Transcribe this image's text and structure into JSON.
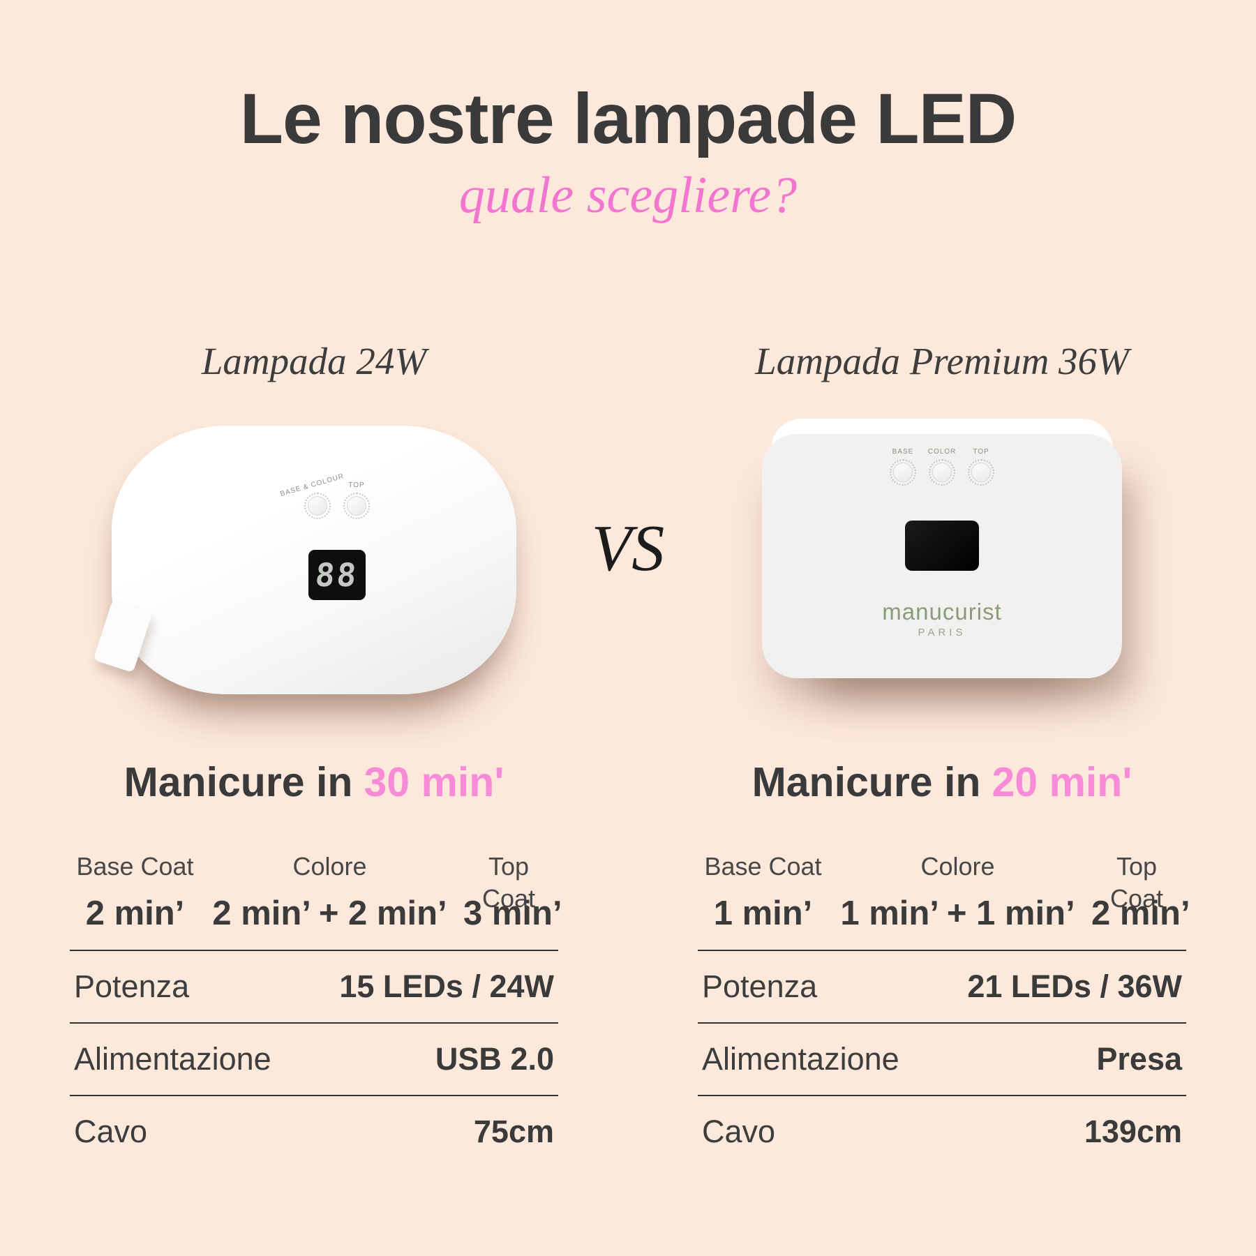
{
  "page": {
    "title": "Le nostre lampade LED",
    "subtitle": "quale scegliere?",
    "vs_label": "VS"
  },
  "colors": {
    "background": "#fce9dc",
    "title_dark": "#3a3a3a",
    "pink_subtitle": "#f276cf",
    "pink_highlight": "#f78bd7",
    "brand_green": "#8a9b78",
    "divider": "#333333"
  },
  "left_lamp": {
    "name": "Lampada 24W",
    "knob_labels": [
      "BASE & COLOUR",
      "TOP"
    ],
    "display_digits": "88",
    "manicure_prefix": "Manicure in",
    "manicure_time": "30 min'",
    "time_headers": [
      "Base Coat",
      "Colore",
      "Top Coat"
    ],
    "time_values": [
      "2 min’",
      "2 min’ + 2 min’",
      "3 min’"
    ],
    "specs": [
      {
        "label": "Potenza",
        "value": "15 LEDs / 24W"
      },
      {
        "label": "Alimentazione",
        "value": "USB 2.0"
      },
      {
        "label": "Cavo",
        "value": "75cm"
      }
    ]
  },
  "right_lamp": {
    "name": "Lampada Premium 36W",
    "knob_labels": [
      "BASE",
      "COLOR",
      "TOP"
    ],
    "brand": "manucurist",
    "brand_city": "PARIS",
    "manicure_prefix": "Manicure in",
    "manicure_time": "20 min'",
    "time_headers": [
      "Base Coat",
      "Colore",
      "Top Coat"
    ],
    "time_values": [
      "1 min’",
      "1 min’ + 1 min’",
      "2 min’"
    ],
    "specs": [
      {
        "label": "Potenza",
        "value": "21 LEDs / 36W"
      },
      {
        "label": "Alimentazione",
        "value": "Presa"
      },
      {
        "label": "Cavo",
        "value": "139cm"
      }
    ]
  }
}
